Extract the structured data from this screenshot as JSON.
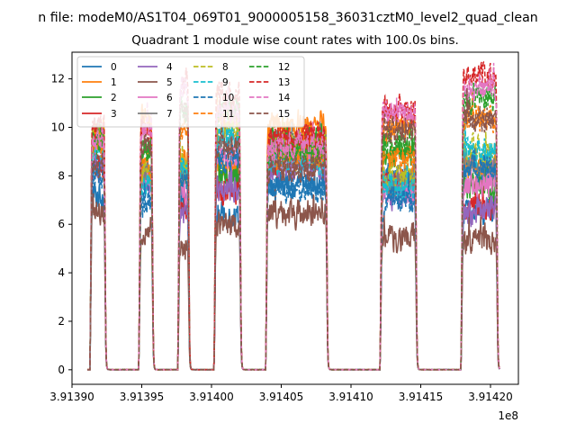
{
  "chart_data": {
    "type": "line",
    "suptitle": "n file: modeM0/AS1T04_069T01_9000005158_36031cztM0_level2_quad_clean",
    "title": "Quadrant 1 module wise count rates with 100.0s bins.",
    "xlabel": "",
    "ylabel": "",
    "x_offset_label": "1e8",
    "xlim": [
      3.9139,
      3.91422
    ],
    "ylim": [
      -0.6,
      13.1
    ],
    "x_ticks": [
      3.9139,
      3.91395,
      3.914,
      3.91405,
      3.9141,
      3.91415,
      3.9142
    ],
    "x_tick_labels": [
      "3.91390",
      "3.91395",
      "3.91400",
      "3.91405",
      "3.91410",
      "3.91415",
      "3.91420"
    ],
    "y_ticks": [
      0,
      2,
      4,
      6,
      8,
      10,
      12
    ],
    "y_tick_labels": [
      "0",
      "2",
      "4",
      "6",
      "8",
      "10",
      "12"
    ],
    "legend_position": "top-left",
    "legend_columns": 4,
    "grid": false,
    "segments": [
      {
        "start": 3.913914,
        "end": 3.913923
      },
      {
        "start": 3.913949,
        "end": 3.913957
      },
      {
        "start": 3.913977,
        "end": 3.913983
      },
      {
        "start": 3.914003,
        "end": 3.91402
      },
      {
        "start": 3.91404,
        "end": 3.914082
      },
      {
        "start": 3.914122,
        "end": 3.914146
      },
      {
        "start": 3.91418,
        "end": 3.914204
      }
    ],
    "series": [
      {
        "name": "0",
        "color": "#1f77b4",
        "dash": "solid",
        "level": 7.2
      },
      {
        "name": "1",
        "color": "#ff7f0e",
        "dash": "solid",
        "level": 9.3
      },
      {
        "name": "2",
        "color": "#2ca02c",
        "dash": "solid",
        "level": 8.5
      },
      {
        "name": "3",
        "color": "#d62728",
        "dash": "solid",
        "level": 7.6
      },
      {
        "name": "4",
        "color": "#9467bd",
        "dash": "solid",
        "level": 7.4
      },
      {
        "name": "5",
        "color": "#8c564b",
        "dash": "solid",
        "level": 5.8
      },
      {
        "name": "6",
        "color": "#e377c2",
        "dash": "solid",
        "level": 8.2
      },
      {
        "name": "7",
        "color": "#7f7f7f",
        "dash": "solid",
        "level": 8.8
      },
      {
        "name": "8",
        "color": "#bcbd22",
        "dash": "dashed",
        "level": 9.0
      },
      {
        "name": "9",
        "color": "#17becf",
        "dash": "dashed",
        "level": 8.6
      },
      {
        "name": "10",
        "color": "#1f77b4",
        "dash": "dashed",
        "level": 7.8
      },
      {
        "name": "11",
        "color": "#ff7f0e",
        "dash": "dashed",
        "level": 9.5
      },
      {
        "name": "12",
        "color": "#2ca02c",
        "dash": "dashed",
        "level": 10.0
      },
      {
        "name": "13",
        "color": "#d62728",
        "dash": "dashed",
        "level": 10.8
      },
      {
        "name": "14",
        "color": "#e377c2",
        "dash": "dashed",
        "level": 10.4
      },
      {
        "name": "15",
        "color": "#8c564b",
        "dash": "dashed",
        "level": 9.4
      }
    ]
  }
}
